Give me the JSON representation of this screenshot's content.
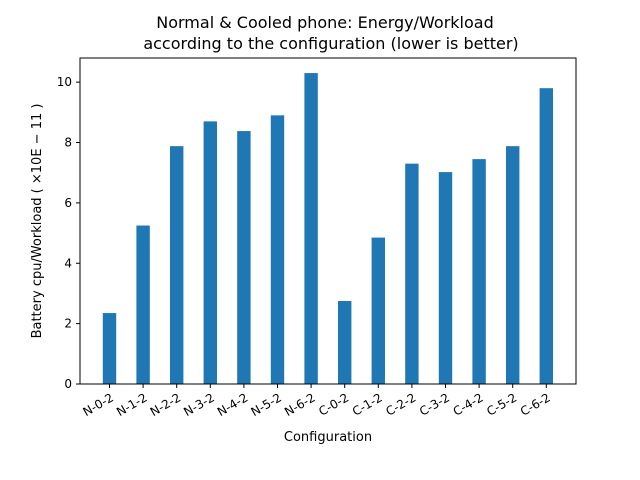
{
  "chart_data": {
    "type": "bar",
    "title_line1": "Normal & Cooled phone: Energy/Workload",
    "title_line2": "according to the configuration (lower is better)",
    "xlabel": "Configuration",
    "ylabel": "Battery cpu/Workload ( ×10E − 11 )",
    "categories": [
      "N-0-2",
      "N-1-2",
      "N-2-2",
      "N-3-2",
      "N-4-2",
      "N-5-2",
      "N-6-2",
      "C-0-2",
      "C-1-2",
      "C-2-2",
      "C-3-2",
      "C-4-2",
      "C-5-2",
      "C-6-2"
    ],
    "values": [
      2.35,
      5.25,
      7.88,
      8.7,
      8.38,
      8.9,
      10.3,
      2.75,
      4.85,
      7.3,
      7.02,
      7.45,
      7.88,
      9.8
    ],
    "ylim": [
      0,
      10.8
    ],
    "yticks": [
      0,
      2,
      4,
      6,
      8,
      10
    ],
    "bar_color": "#1f77b4",
    "grid": false,
    "legend": "none"
  }
}
